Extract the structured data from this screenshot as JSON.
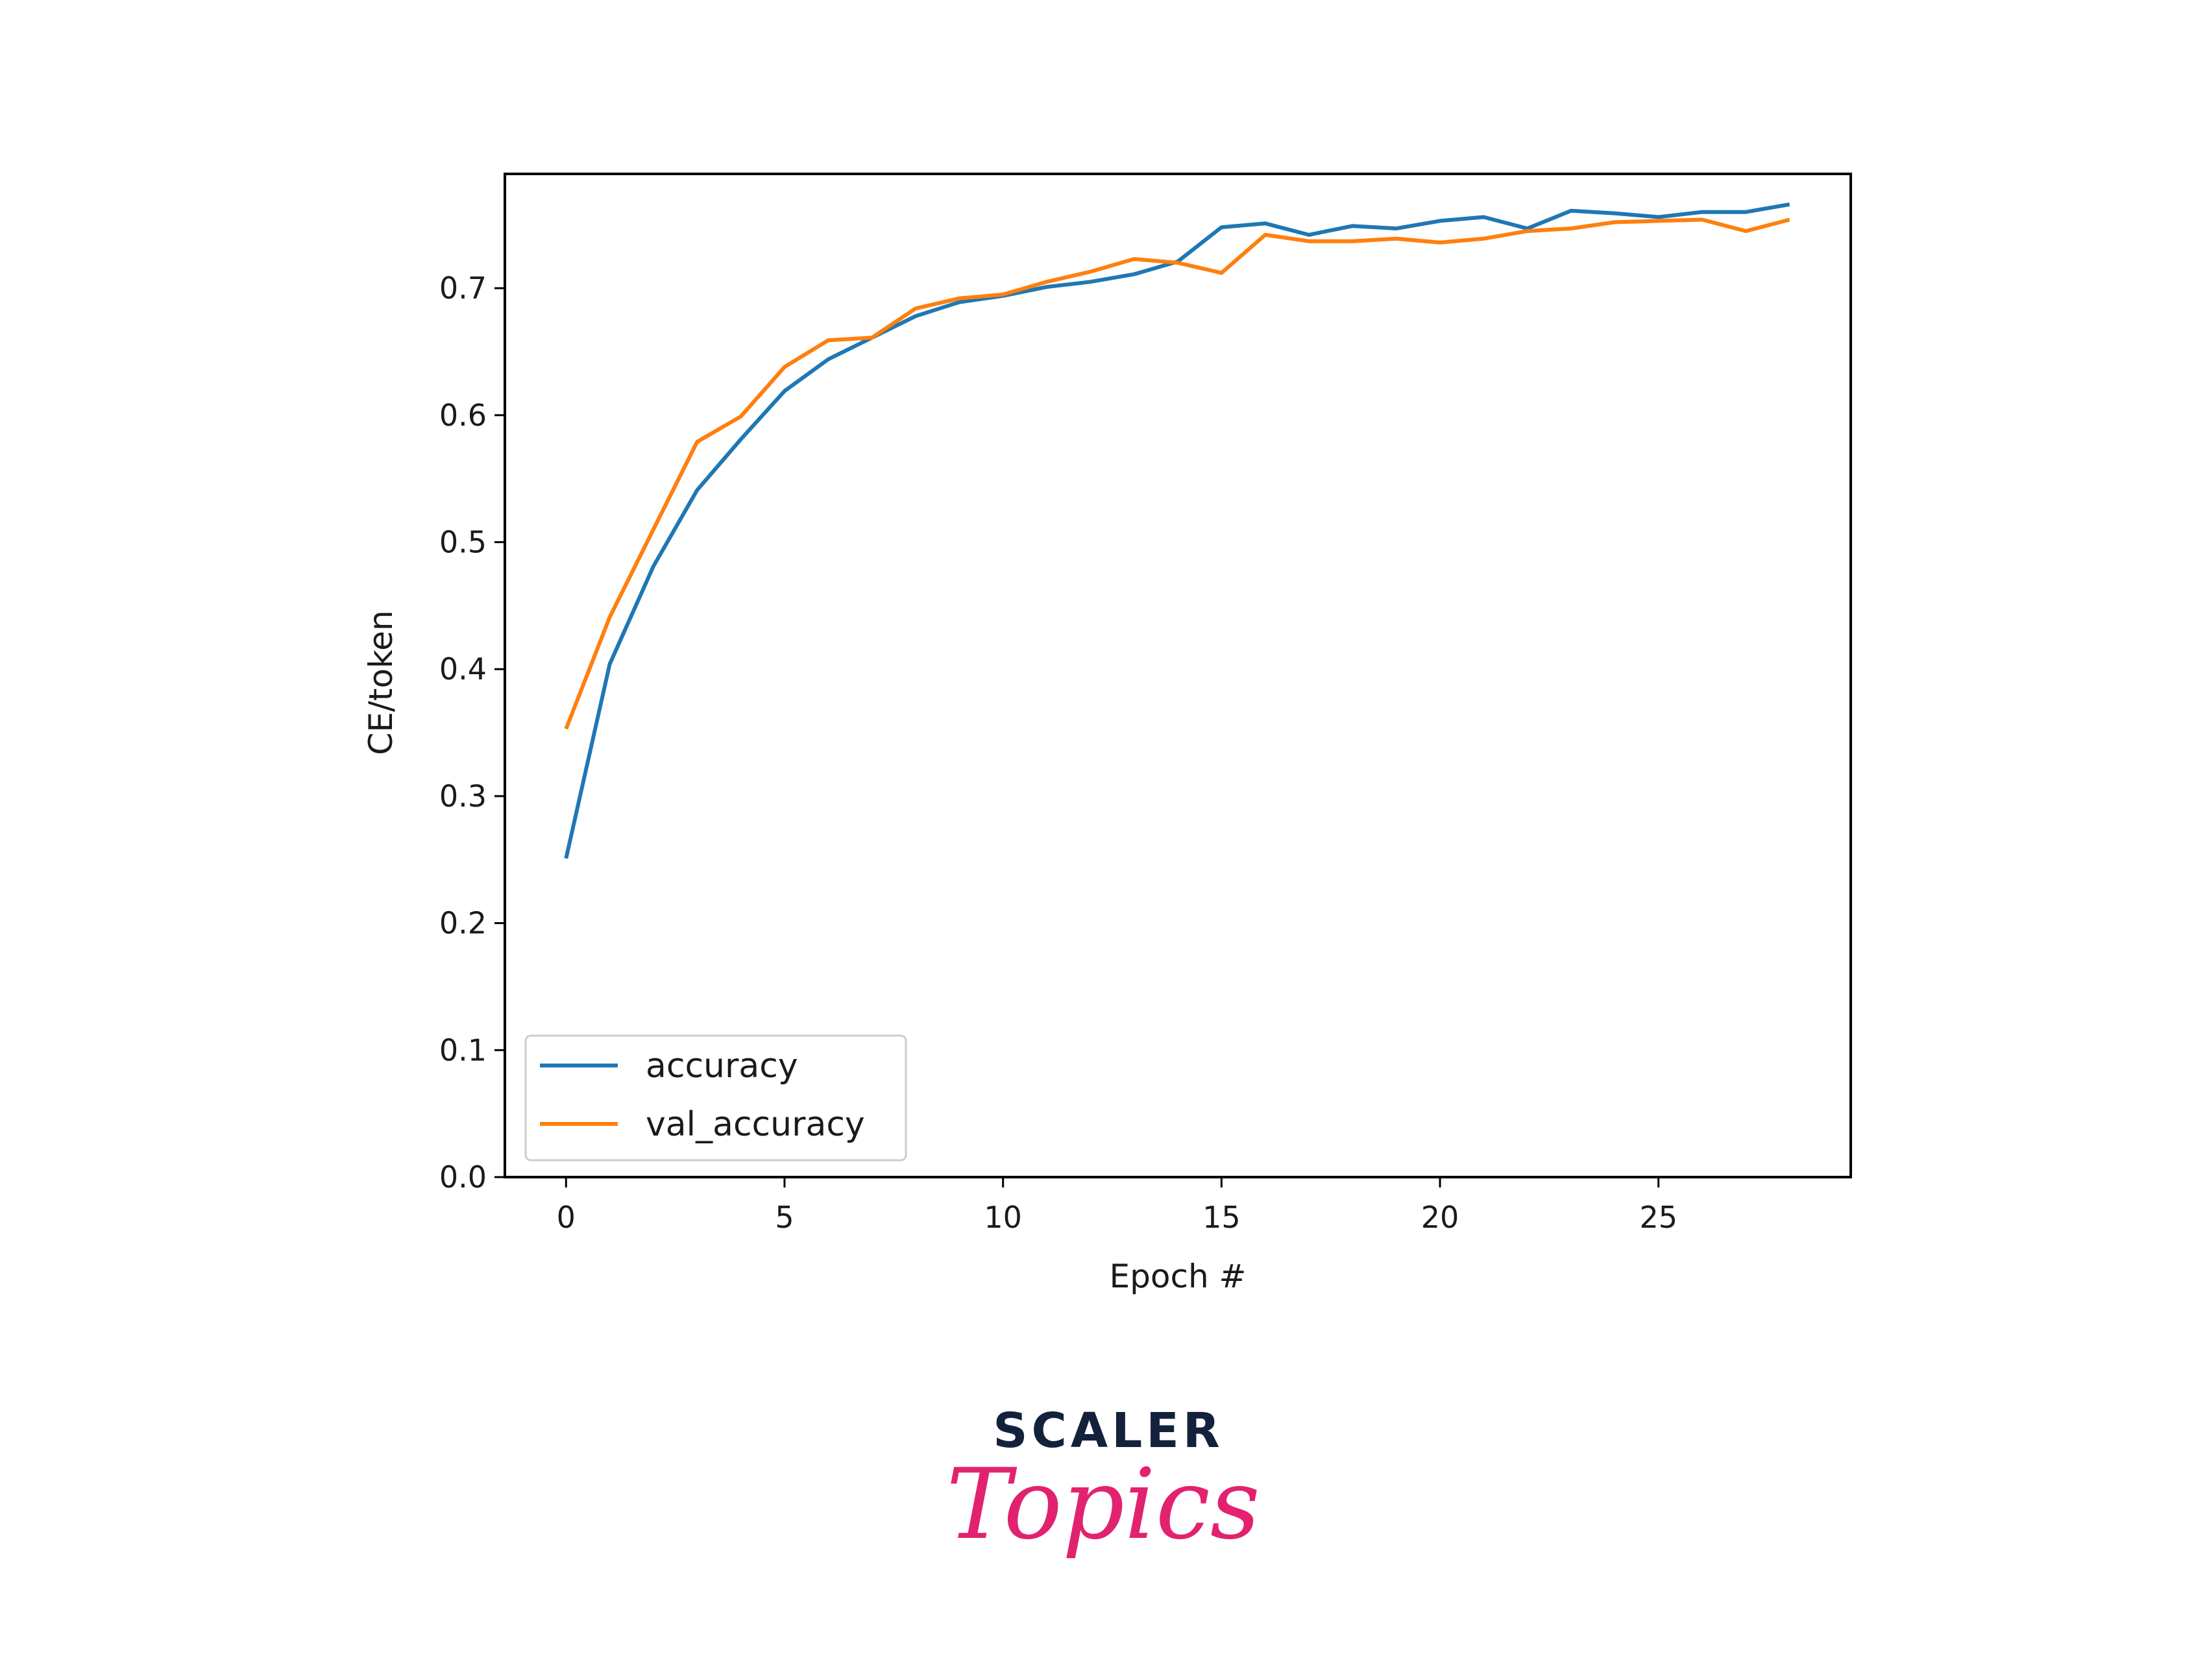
{
  "chart_data": {
    "type": "line",
    "title": "",
    "xlabel": "Epoch #",
    "ylabel": "CE/token",
    "xlim": [
      -1.4,
      29.4
    ],
    "ylim": [
      0.0,
      0.79
    ],
    "xticks": [
      0,
      5,
      10,
      15,
      20,
      25
    ],
    "yticks": [
      "0.0",
      "0.1",
      "0.2",
      "0.3",
      "0.4",
      "0.5",
      "0.6",
      "0.7"
    ],
    "grid": false,
    "legend_position": "lower-left",
    "x": [
      0,
      1,
      2,
      3,
      4,
      5,
      6,
      7,
      8,
      9,
      10,
      11,
      12,
      13,
      14,
      15,
      16,
      17,
      18,
      19,
      20,
      21,
      22,
      23,
      24,
      25,
      26,
      27,
      28
    ],
    "series": [
      {
        "name": "accuracy",
        "color": "#1f77b4",
        "values": [
          0.251,
          0.404,
          0.481,
          0.541,
          0.581,
          0.619,
          0.644,
          0.661,
          0.678,
          0.689,
          0.694,
          0.701,
          0.705,
          0.711,
          0.721,
          0.748,
          0.751,
          0.742,
          0.749,
          0.747,
          0.753,
          0.756,
          0.747,
          0.761,
          0.759,
          0.756,
          0.76,
          0.76,
          0.766
        ]
      },
      {
        "name": "val_accuracy",
        "color": "#ff7f0e",
        "values": [
          0.353,
          0.441,
          0.51,
          0.579,
          0.599,
          0.638,
          0.659,
          0.661,
          0.684,
          0.692,
          0.695,
          0.705,
          0.713,
          0.723,
          0.72,
          0.712,
          0.742,
          0.737,
          0.737,
          0.739,
          0.736,
          0.739,
          0.745,
          0.747,
          0.752,
          0.753,
          0.754,
          0.745,
          0.754
        ]
      }
    ]
  },
  "brand": {
    "top": "SCALER",
    "bottom": "Topics",
    "top_color": "#14213d",
    "bottom_color": "#e2226f"
  }
}
